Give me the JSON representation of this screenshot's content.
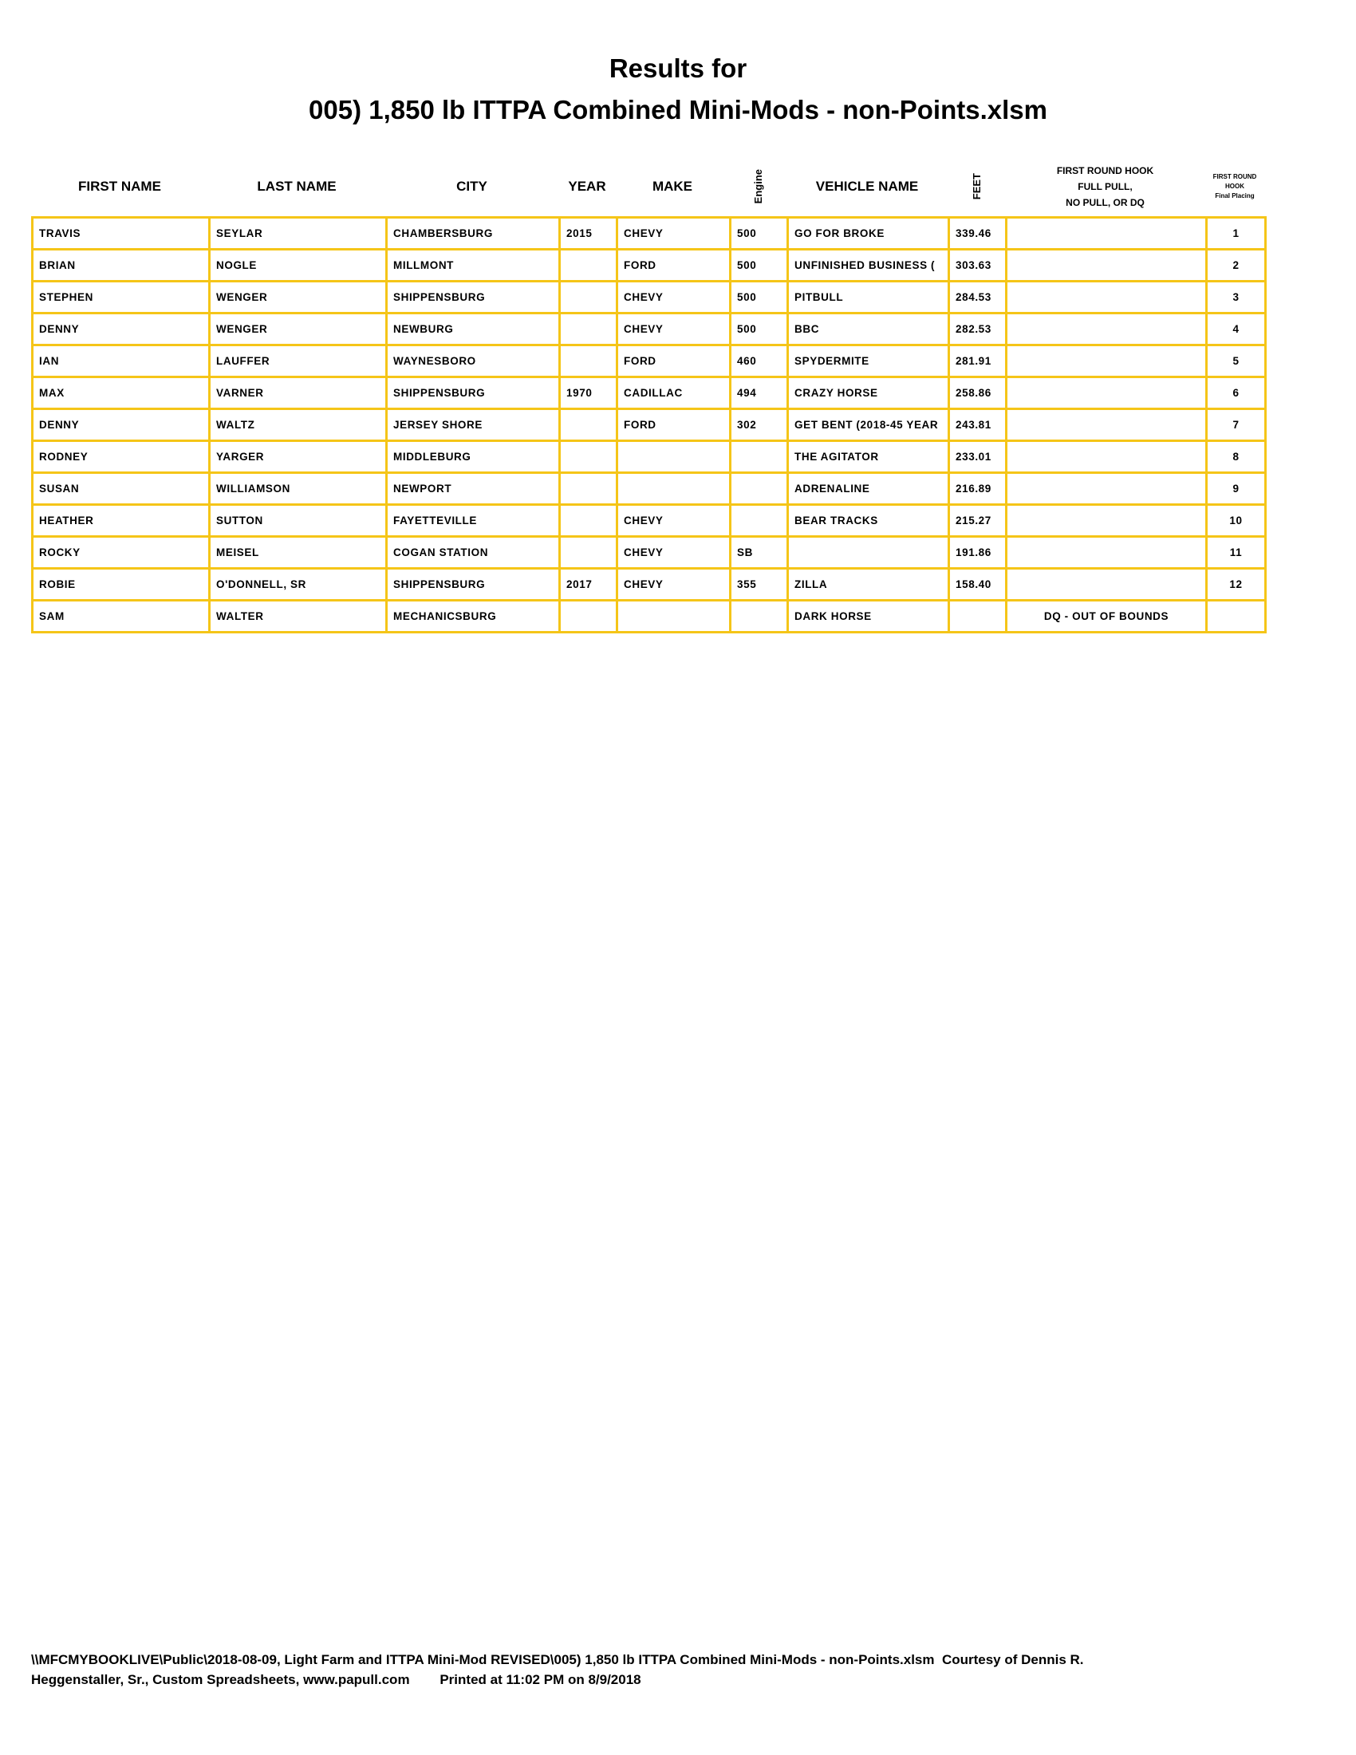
{
  "header": {
    "title_lines": [
      "Results for",
      "005) 1,850 lb ITTPA Combined Mini-Mods - non-Points.xlsm"
    ]
  },
  "table": {
    "columns": [
      [
        "FIRST NAME"
      ],
      [
        "LAST NAME"
      ],
      [
        "CITY"
      ],
      [
        "YEAR"
      ],
      [
        "MAKE"
      ],
      [
        "Engine"
      ],
      [
        "VEHICLE NAME"
      ],
      [
        "FEET"
      ],
      [
        "FIRST ROUND HOOK",
        "FULL PULL,",
        "NO PULL, OR DQ"
      ],
      [
        "FIRST ROUND",
        "HOOK",
        "Final Placing"
      ]
    ],
    "rows": [
      [
        "TRAVIS",
        "SEYLAR",
        "CHAMBERSBURG",
        "2015",
        "CHEVY",
        "500",
        "GO FOR BROKE",
        "339.46",
        null,
        "1"
      ],
      [
        "BRIAN",
        "NOGLE",
        "MILLMONT",
        null,
        "FORD",
        "500",
        "UNFINISHED BUSINESS (",
        "303.63",
        null,
        "2"
      ],
      [
        "STEPHEN",
        "WENGER",
        "SHIPPENSBURG",
        null,
        "CHEVY",
        "500",
        "PITBULL",
        "284.53",
        null,
        "3"
      ],
      [
        "DENNY",
        "WENGER",
        "NEWBURG",
        null,
        "CHEVY",
        "500",
        "BBC",
        "282.53",
        null,
        "4"
      ],
      [
        "IAN",
        "LAUFFER",
        "WAYNESBORO",
        null,
        "FORD",
        "460",
        "SPYDERMITE",
        "281.91",
        null,
        "5"
      ],
      [
        "MAX",
        "VARNER",
        "SHIPPENSBURG",
        "1970",
        "CADILLAC",
        "494",
        "CRAZY HORSE",
        "258.86",
        null,
        "6"
      ],
      [
        "DENNY",
        "WALTZ",
        "JERSEY SHORE",
        null,
        "FORD",
        "302",
        "GET BENT (2018-45 YEAR",
        "243.81",
        null,
        "7"
      ],
      [
        "RODNEY",
        "YARGER",
        "MIDDLEBURG",
        null,
        null,
        null,
        "THE AGITATOR",
        "233.01",
        null,
        "8"
      ],
      [
        "SUSAN",
        "WILLIAMSON",
        "NEWPORT",
        null,
        null,
        null,
        "ADRENALINE",
        "216.89",
        null,
        "9"
      ],
      [
        "HEATHER",
        "SUTTON",
        "FAYETTEVILLE",
        null,
        "CHEVY",
        null,
        "BEAR TRACKS",
        "215.27",
        null,
        "10"
      ],
      [
        "ROCKY",
        "MEISEL",
        "COGAN STATION",
        null,
        "CHEVY",
        "SB",
        null,
        "191.86",
        null,
        "11"
      ],
      [
        "ROBIE",
        "O'DONNELL, SR",
        "SHIPPENSBURG",
        "2017",
        "CHEVY",
        "355",
        "ZILLA",
        "158.40",
        null,
        "12"
      ],
      [
        "SAM",
        "WALTER",
        "MECHANICSBURG",
        null,
        null,
        null,
        "DARK HORSE",
        null,
        "DQ - OUT OF BOUNDS",
        null
      ]
    ]
  },
  "footer": {
    "lines": [
      "\\\\MFCMYBOOKLIVE\\Public\\2018-08-09, Light Farm and ITTPA Mini-Mod REVISED\\005) 1,850 lb ITTPA Combined Mini-Mods - non-Points.xlsm  Courtesy of Dennis R.",
      "Heggenstaller, Sr., Custom Spreadsheets, www.papull.com        Printed at 11:02 PM on 8/9/2018"
    ]
  }
}
